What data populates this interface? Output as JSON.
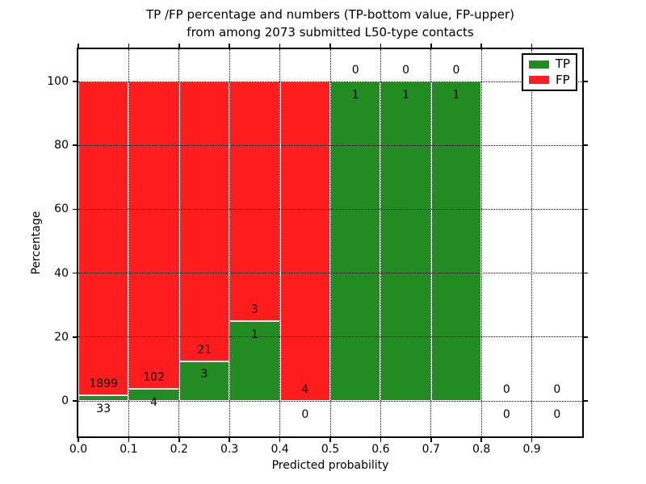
{
  "chart": {
    "title_line1": "TP /FP percentage and numbers (TP-bottom value, FP-upper)",
    "title_line2": "from among 2073 submitted L50-type contacts",
    "xlabel": "Predicted probability",
    "ylabel": "Percentage",
    "legend": {
      "items": [
        {
          "label": "TP",
          "color": "#228b22"
        },
        {
          "label": "FP",
          "color": "#ff1c1c"
        }
      ]
    }
  },
  "chart_data": {
    "type": "bar",
    "variant": "stacked-percentage",
    "title": "TP /FP percentage and numbers (TP-bottom value, FP-upper) from among 2073 submitted L50-type contacts",
    "xlabel": "Predicted probability",
    "ylabel": "Percentage",
    "total_submitted": 2073,
    "xlim": [
      0.0,
      1.0
    ],
    "ylim": [
      -11,
      110
    ],
    "bin_width": 0.1,
    "grid": "dotted",
    "legend_position": "upper-right",
    "x_ticks": [
      "0.0",
      "0.1",
      "0.2",
      "0.3",
      "0.4",
      "0.5",
      "0.6",
      "0.7",
      "0.8",
      "0.9"
    ],
    "y_ticks": [
      "0",
      "20",
      "40",
      "60",
      "80",
      "100"
    ],
    "categories": [
      "0.0-0.1",
      "0.1-0.2",
      "0.2-0.3",
      "0.3-0.4",
      "0.4-0.5",
      "0.5-0.6",
      "0.6-0.7",
      "0.7-0.8",
      "0.8-0.9",
      "0.9-1.0"
    ],
    "series": [
      {
        "name": "TP",
        "color": "#228b22",
        "counts": [
          33,
          4,
          3,
          1,
          0,
          1,
          1,
          1,
          0,
          0
        ]
      },
      {
        "name": "FP",
        "color": "#ff1c1c",
        "counts": [
          1899,
          102,
          21,
          3,
          4,
          0,
          0,
          0,
          0,
          0
        ]
      }
    ],
    "tp_percent_of_bin": [
      1.71,
      3.77,
      12.5,
      25.0,
      0.0,
      100.0,
      100.0,
      100.0,
      0.0,
      0.0
    ]
  }
}
